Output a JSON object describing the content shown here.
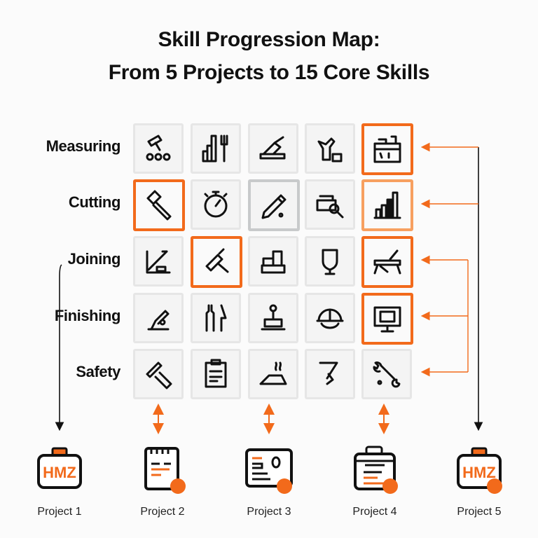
{
  "title": {
    "line1": "Skill Progression Map:",
    "line2": "From 5 Projects to 15 Core Skills"
  },
  "colors": {
    "accent": "#f26a1b",
    "accent_light": "#f7a060",
    "ink": "#111111",
    "cell_bg": "#f4f4f4",
    "cell_border": "#e6e6e6"
  },
  "rows": [
    {
      "label": "Measuring",
      "cells": [
        {
          "icon": "roller-icon",
          "state": "normal"
        },
        {
          "icon": "bars-fork-icon",
          "state": "normal"
        },
        {
          "icon": "plane-tool-icon",
          "state": "normal"
        },
        {
          "icon": "workbench-tool-icon",
          "state": "normal"
        },
        {
          "icon": "toolbox-shelf-icon",
          "state": "highlight"
        }
      ]
    },
    {
      "label": "Cutting",
      "cells": [
        {
          "icon": "hammer-icon",
          "state": "highlight"
        },
        {
          "icon": "stopwatch-icon",
          "state": "normal"
        },
        {
          "icon": "pencil-icon",
          "state": "gray"
        },
        {
          "icon": "box-search-icon",
          "state": "normal"
        },
        {
          "icon": "bar-chart-icon",
          "state": "highlight-light"
        }
      ]
    },
    {
      "label": "Joining",
      "cells": [
        {
          "icon": "saw-icon",
          "state": "normal"
        },
        {
          "icon": "mallet-icon",
          "state": "highlight"
        },
        {
          "icon": "blocks-icon",
          "state": "normal"
        },
        {
          "icon": "shield-badge-icon",
          "state": "normal"
        },
        {
          "icon": "bench-saw-icon",
          "state": "highlight"
        }
      ]
    },
    {
      "label": "Finishing",
      "cells": [
        {
          "icon": "drill-press-icon",
          "state": "normal"
        },
        {
          "icon": "wrench-knife-icon",
          "state": "normal"
        },
        {
          "icon": "stamp-icon",
          "state": "normal"
        },
        {
          "icon": "hard-hat-icon",
          "state": "normal"
        },
        {
          "icon": "monitor-icon",
          "state": "highlight"
        }
      ]
    },
    {
      "label": "Safety",
      "cells": [
        {
          "icon": "ruler-cross-icon",
          "state": "normal"
        },
        {
          "icon": "clipboard-icon",
          "state": "normal"
        },
        {
          "icon": "iron-icon",
          "state": "normal"
        },
        {
          "icon": "clamp-icon",
          "state": "normal"
        },
        {
          "icon": "wrench-icon",
          "state": "normal"
        }
      ]
    }
  ],
  "projects": [
    {
      "label": "Project 1",
      "icon": "briefcase-icon",
      "badge_text": "HMZ"
    },
    {
      "label": "Project 2",
      "icon": "notepad-icon"
    },
    {
      "label": "Project 3",
      "icon": "id-card-icon"
    },
    {
      "label": "Project 4",
      "icon": "clipboard-list-icon"
    },
    {
      "label": "Project 5",
      "icon": "briefcase-icon",
      "badge_text": "HMZ"
    }
  ]
}
